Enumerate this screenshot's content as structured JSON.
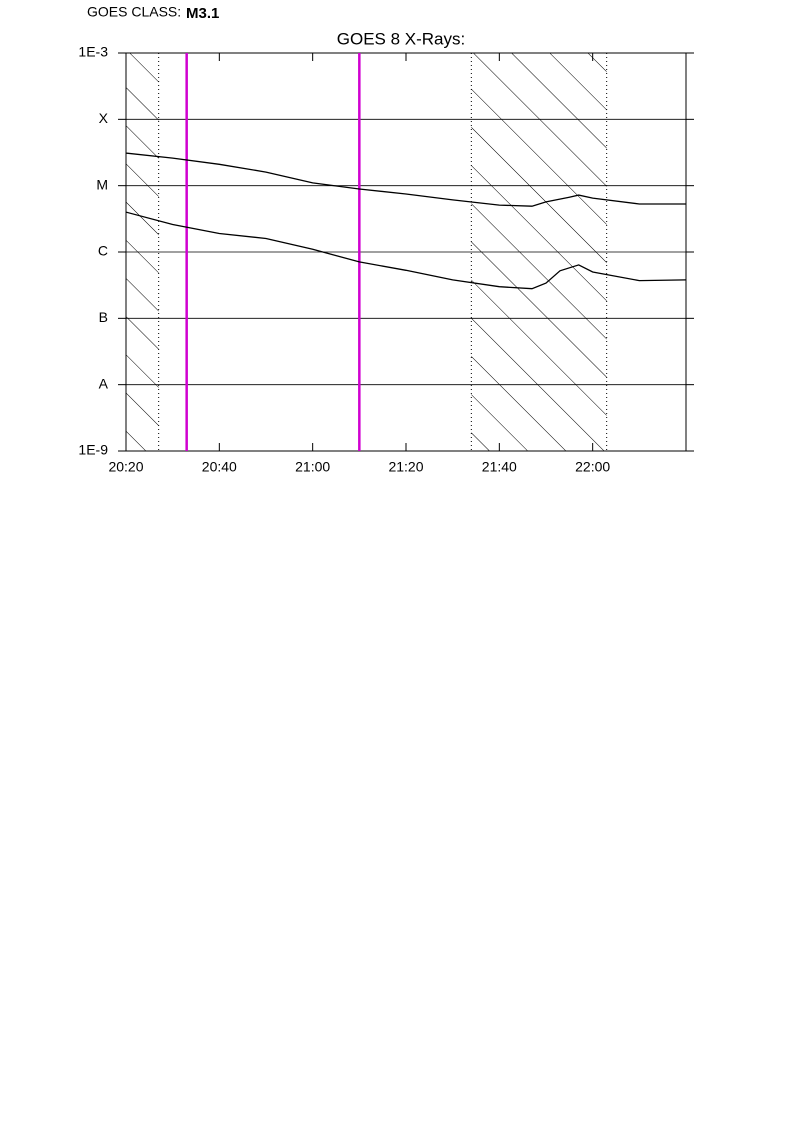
{
  "header": {
    "label": "GOES CLASS:",
    "class": "M3.1"
  },
  "chart_data": {
    "type": "line",
    "title": "GOES 8 X-Rays:",
    "ylog": true,
    "ylim": [
      1e-09,
      0.001
    ],
    "yticks": [
      {
        "value": 1e-09,
        "label": "1E-9"
      },
      {
        "value": 1e-08,
        "label": "A"
      },
      {
        "value": 1e-07,
        "label": "B"
      },
      {
        "value": 1e-06,
        "label": "C"
      },
      {
        "value": 1e-05,
        "label": "M"
      },
      {
        "value": 0.0001,
        "label": "X"
      },
      {
        "value": 0.001,
        "label": "1E-3"
      }
    ],
    "grid": true,
    "xlim": [
      "20:20",
      "22:20"
    ],
    "xticks": [
      "20:20",
      "20:40",
      "21:00",
      "21:20",
      "21:40",
      "22:00"
    ],
    "shaded": [
      {
        "start": "20:20",
        "end": "20:27"
      },
      {
        "start": "21:34",
        "end": "22:03"
      }
    ],
    "markers": [
      "20:33",
      "21:10"
    ],
    "marker_color": "#d000d0",
    "series": [
      {
        "color": "#000000",
        "x": [
          "20:20",
          "20:30",
          "20:40",
          "20:50",
          "21:00",
          "21:10",
          "21:20",
          "21:30",
          "21:40",
          "21:47",
          "21:50",
          "21:55",
          "21:57",
          "22:00",
          "22:10",
          "22:20"
        ],
        "values": [
          3.1e-05,
          2.6e-05,
          2.1e-05,
          1.6e-05,
          1.1e-05,
          8.9e-06,
          7.5e-06,
          6.1e-06,
          5.1e-06,
          4.9e-06,
          5.7e-06,
          6.7e-06,
          7.2e-06,
          6.5e-06,
          5.3e-06,
          5.3e-06
        ]
      },
      {
        "color": "#000000",
        "x": [
          "20:20",
          "20:30",
          "20:40",
          "20:50",
          "21:00",
          "21:10",
          "21:20",
          "21:30",
          "21:40",
          "21:47",
          "21:50",
          "21:53",
          "21:57",
          "22:00",
          "22:10",
          "22:20"
        ],
        "values": [
          4e-06,
          2.6e-06,
          1.9e-06,
          1.6e-06,
          1.1e-06,
          7.1e-07,
          5.3e-07,
          3.8e-07,
          3e-07,
          2.8e-07,
          3.4e-07,
          5.2e-07,
          6.4e-07,
          5e-07,
          3.7e-07,
          3.8e-07
        ]
      }
    ]
  }
}
